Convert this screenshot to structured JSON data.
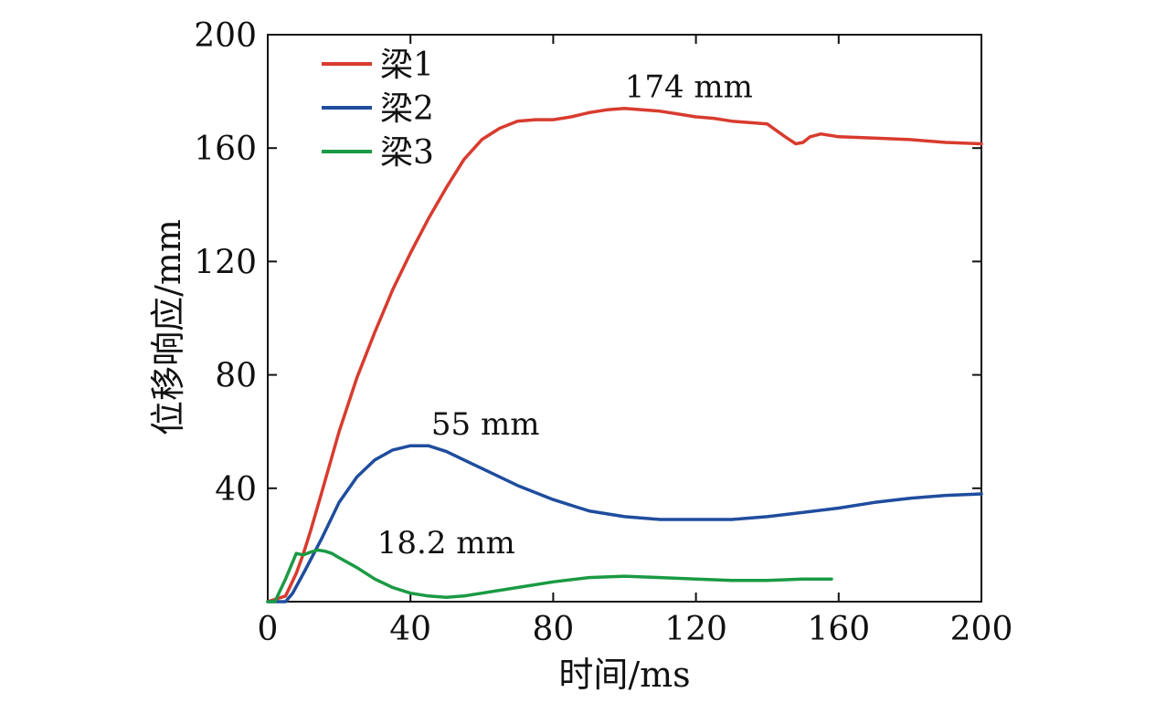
{
  "chart_data": {
    "type": "line",
    "xlabel": "时间/ms",
    "ylabel": "位移响应/mm",
    "xlim": [
      0,
      200
    ],
    "ylim": [
      0,
      200
    ],
    "xticks": [
      0,
      40,
      80,
      120,
      160,
      200
    ],
    "yticks": [
      40,
      80,
      120,
      160,
      200
    ],
    "grid": false,
    "legend_position": "top-left",
    "series": [
      {
        "name": "梁1",
        "color": "#d83b2e",
        "x": [
          0,
          5,
          8,
          10,
          12,
          15,
          20,
          25,
          30,
          35,
          40,
          45,
          50,
          55,
          60,
          65,
          70,
          75,
          80,
          85,
          90,
          95,
          100,
          105,
          110,
          115,
          120,
          125,
          130,
          135,
          140,
          145,
          148,
          150,
          152,
          155,
          160,
          170,
          180,
          190,
          200
        ],
        "y": [
          0,
          2,
          10,
          17,
          25,
          38,
          60,
          79,
          95,
          110,
          123,
          135,
          146,
          156,
          163,
          167,
          169.5,
          170,
          170,
          171,
          172.5,
          173.5,
          174,
          173.5,
          173,
          172,
          171,
          170.5,
          169.5,
          169,
          168.5,
          164,
          161.5,
          162,
          164,
          165,
          164,
          163.5,
          163,
          162,
          161.5
        ]
      },
      {
        "name": "梁2",
        "color": "#1f4d9e",
        "x": [
          0,
          3,
          5,
          7,
          10,
          15,
          20,
          25,
          30,
          35,
          40,
          45,
          50,
          55,
          60,
          70,
          80,
          90,
          100,
          110,
          120,
          130,
          140,
          150,
          160,
          170,
          180,
          190,
          200
        ],
        "y": [
          0,
          0,
          0,
          3,
          10,
          22,
          35,
          44,
          50,
          53.5,
          55,
          55,
          53,
          50,
          47,
          41,
          36,
          32,
          30,
          29,
          29,
          29,
          30,
          31.5,
          33,
          35,
          36.5,
          37.5,
          38
        ]
      },
      {
        "name": "梁3",
        "color": "#1a9a44",
        "x": [
          0,
          2,
          5,
          7,
          8,
          10,
          12,
          14,
          16,
          18,
          20,
          25,
          30,
          35,
          40,
          45,
          50,
          55,
          60,
          70,
          80,
          90,
          100,
          110,
          120,
          130,
          140,
          150,
          158
        ],
        "y": [
          0,
          0,
          8,
          14,
          17,
          16.5,
          17.5,
          18.2,
          17.8,
          17,
          15.5,
          12,
          8,
          5,
          3,
          2,
          1.5,
          2,
          3,
          5,
          7,
          8.5,
          9,
          8.5,
          8,
          7.5,
          7.5,
          8,
          8
        ]
      }
    ],
    "annotations": [
      {
        "text": "174 mm",
        "x": 118,
        "y": 178
      },
      {
        "text": "55 mm",
        "x": 61,
        "y": 59
      },
      {
        "text": "18.2 mm",
        "x": 50,
        "y": 17
      }
    ]
  }
}
